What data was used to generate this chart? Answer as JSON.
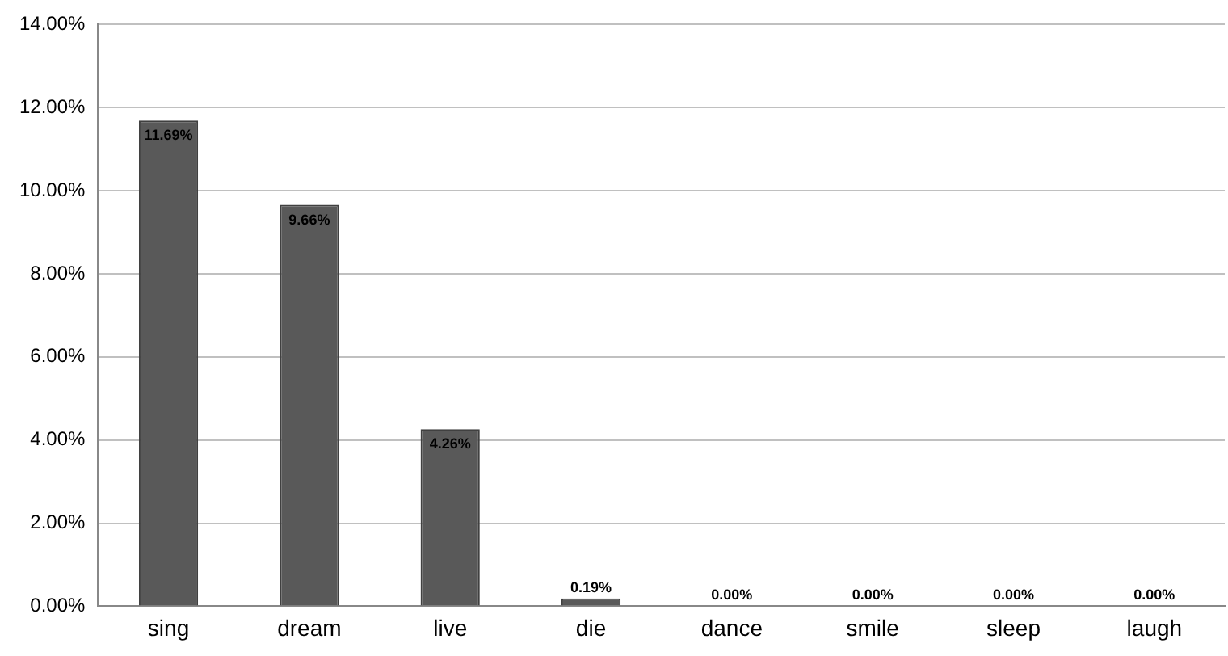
{
  "chart_data": {
    "type": "bar",
    "categories": [
      "sing",
      "dream",
      "live",
      "die",
      "dance",
      "smile",
      "sleep",
      "laugh"
    ],
    "values": [
      11.69,
      9.66,
      4.26,
      0.19,
      0,
      0,
      0,
      0
    ],
    "value_labels": [
      "11.69%",
      "9.66%",
      "4.26%",
      "0.19%",
      "0.00%",
      "0.00%",
      "0.00%",
      "0.00%"
    ],
    "color": "#595959",
    "ylim": [
      0,
      14
    ],
    "yticks": [
      {
        "value": 0,
        "label": "0.00%"
      },
      {
        "value": 2,
        "label": "2.00%"
      },
      {
        "value": 4,
        "label": "4.00%"
      },
      {
        "value": 6,
        "label": "6.00%"
      },
      {
        "value": 8,
        "label": "8.00%"
      },
      {
        "value": 10,
        "label": "10.00%"
      },
      {
        "value": 12,
        "label": "12.00%"
      },
      {
        "value": 14,
        "label": "14.00%"
      }
    ],
    "grid": "y",
    "legend": false
  }
}
